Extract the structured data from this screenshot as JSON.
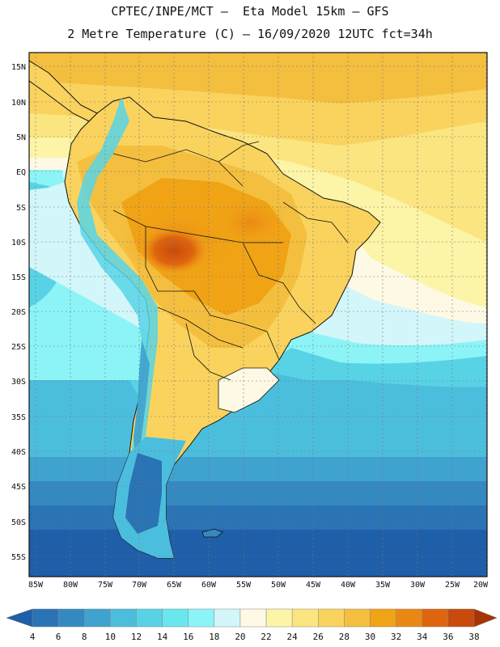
{
  "title_line1": "CPTEC/INPE/MCT –  Eta Model 15km – GFS",
  "title_line2": "2 Metre Temperature (C) – 16/09/2020 12UTC fct=34h",
  "map": {
    "lat_ticks": [
      "15N",
      "10N",
      "5N",
      "EQ",
      "5S",
      "10S",
      "15S",
      "20S",
      "25S",
      "30S",
      "35S",
      "40S",
      "45S",
      "50S",
      "55S"
    ],
    "lon_ticks": [
      "85W",
      "80W",
      "75W",
      "70W",
      "65W",
      "60W",
      "55W",
      "50W",
      "45W",
      "40W",
      "35W",
      "30W",
      "25W",
      "20W"
    ],
    "lat_range": [
      17,
      -58
    ],
    "lon_range": [
      -86,
      -20
    ]
  },
  "colorbar": {
    "values": [
      4,
      6,
      8,
      10,
      12,
      14,
      16,
      18,
      20,
      22,
      24,
      26,
      28,
      30,
      32,
      34,
      36,
      38
    ],
    "colors": [
      "#1f5ea8",
      "#2a73b4",
      "#3489c0",
      "#3fa2cf",
      "#4cbedd",
      "#58d3e6",
      "#6ae6ee",
      "#8cf4f7",
      "#d2f6fa",
      "#fdf9e4",
      "#fcf4a6",
      "#fbe580",
      "#f9d35e",
      "#f4bf3f",
      "#f0a315",
      "#ea8815",
      "#de650e",
      "#c84a0c",
      "#a83404"
    ]
  }
}
